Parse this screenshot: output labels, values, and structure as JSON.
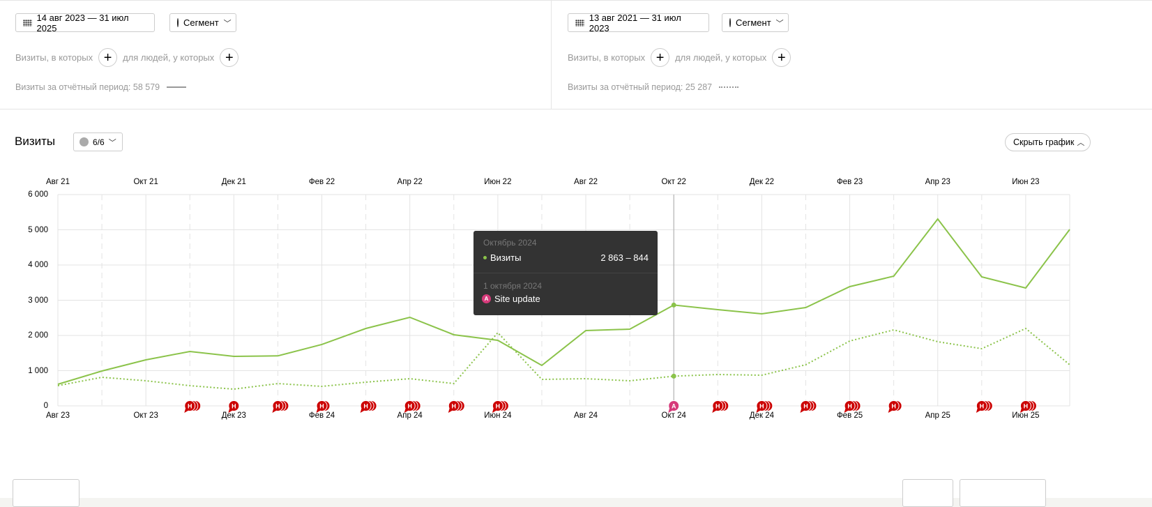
{
  "left_panel": {
    "date_range": "14 авг 2023 — 31 июл 2025",
    "segment_label": "Сегмент",
    "visits_filter_label": "Визиты, в которых",
    "people_filter_label": "для людей, у которых",
    "total_label": "Визиты за отчётный период: 58 579",
    "line_style": "solid"
  },
  "right_panel": {
    "date_range": "13 авг 2021 — 31 июл 2023",
    "segment_label": "Сегмент",
    "visits_filter_label": "Визиты, в которых",
    "people_filter_label": "для людей, у которых",
    "total_label": "Визиты за отчётный период: 25 287",
    "line_style": "dotted"
  },
  "chart_header": {
    "title": "Визиты",
    "annotations_count": "6/6",
    "hide_button": "Скрыть график"
  },
  "tooltip": {
    "period": "Октябрь 2024",
    "series_label": "Визиты",
    "value": "2 863 – 844",
    "annotation_date": "1 октября 2024",
    "annotation_letter": "A",
    "annotation_text": "Site update"
  },
  "chart_data": {
    "type": "line",
    "colors": {
      "series": "#8bc34a",
      "annotation_h": "#cc0000",
      "annotation_a": "#d63a7a"
    },
    "grid": true,
    "ylim": [
      0,
      6000
    ],
    "y_ticks": [
      "0",
      "1 000",
      "2 000",
      "3 000",
      "4 000",
      "5 000",
      "6 000"
    ],
    "x_bottom_labels": [
      "Авг 23",
      "Окт 23",
      "Дек 23",
      "Фев 24",
      "Апр 24",
      "Июн 24",
      "Авг 24",
      "Окт 24",
      "Дек 24",
      "Фев 25",
      "Апр 25",
      "Июн 25"
    ],
    "x_top_labels": [
      "Авг 21",
      "Окт 21",
      "Дек 21",
      "Фев 22",
      "Апр 22",
      "Июн 22",
      "Авг 22",
      "Окт 22",
      "Дек 22",
      "Фев 23",
      "Апр 23",
      "Июн 23"
    ],
    "x": [
      "Авг 23",
      "Сен 23",
      "Окт 23",
      "Ноя 23",
      "Дек 23",
      "Янв 24",
      "Фев 24",
      "Мар 24",
      "Апр 24",
      "Май 24",
      "Июн 24",
      "Июл 24",
      "Авг 24",
      "Сен 24",
      "Окт 24",
      "Ноя 24",
      "Дек 24",
      "Янв 25",
      "Фев 25",
      "Мар 25",
      "Апр 25",
      "Май 25",
      "Июн 25",
      "Июл 25"
    ],
    "series": [
      {
        "style": "solid",
        "values": [
          614,
          990,
          1307,
          1545,
          1406,
          1420,
          1743,
          2198,
          2515,
          2020,
          1861,
          1149,
          2139,
          2178,
          2863,
          2733,
          2614,
          2792,
          3386,
          3683,
          5307,
          3663,
          3347,
          5010
        ]
      },
      {
        "style": "dotted",
        "values": [
          574,
          812,
          713,
          574,
          475,
          634,
          554,
          673,
          772,
          634,
          2079,
          752,
          772,
          713,
          844,
          891,
          871,
          1168,
          1842,
          2158,
          1822,
          1624,
          2198,
          1168
        ]
      }
    ],
    "highlight_index": 14,
    "annotations": [
      {
        "month": "Ноя 23",
        "letter": "H",
        "stack": 3
      },
      {
        "month": "Дек 23",
        "letter": "H",
        "stack": 1
      },
      {
        "month": "Янв 24",
        "letter": "H",
        "stack": 3
      },
      {
        "month": "Фев 24",
        "letter": "H",
        "stack": 2
      },
      {
        "month": "Мар 24",
        "letter": "H",
        "stack": 3
      },
      {
        "month": "Апр 24",
        "letter": "H",
        "stack": 3
      },
      {
        "month": "Май 24",
        "letter": "H",
        "stack": 3
      },
      {
        "month": "Июн 24",
        "letter": "H",
        "stack": 3
      },
      {
        "month": "Окт 24",
        "letter": "A",
        "stack": 1
      },
      {
        "month": "Ноя 24",
        "letter": "H",
        "stack": 3
      },
      {
        "month": "Дек 24",
        "letter": "H",
        "stack": 3
      },
      {
        "month": "Янв 25",
        "letter": "H",
        "stack": 3
      },
      {
        "month": "Фев 25",
        "letter": "H",
        "stack": 3
      },
      {
        "month": "Мар 25",
        "letter": "H",
        "stack": 2
      },
      {
        "month": "Май 25",
        "letter": "H",
        "stack": 3
      },
      {
        "month": "Июн 25",
        "letter": "H",
        "stack": 3
      }
    ]
  }
}
